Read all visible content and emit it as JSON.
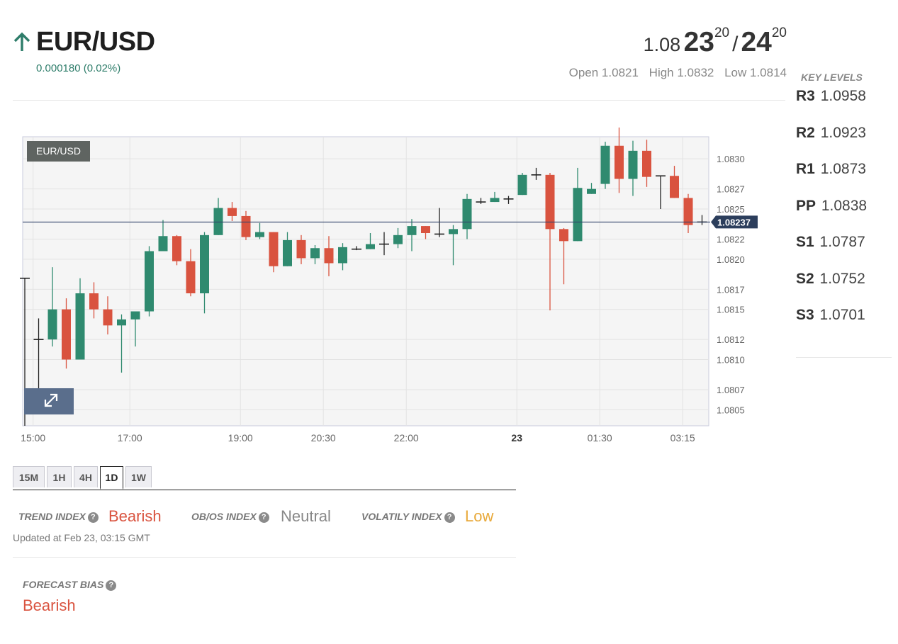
{
  "header": {
    "pair": "EUR/USD",
    "change": "0.000180 (0.02%)",
    "bid_prefix": "1.08",
    "bid_big": "23",
    "bid_sup": "20",
    "separator": "/",
    "ask_big": "24",
    "ask_sup": "20",
    "open": "Open 1.0821",
    "high": "High 1.0832",
    "low": "Low 1.0814",
    "direction_icon": "arrow-up-icon"
  },
  "key_levels": {
    "title": "KEY LEVELS",
    "levels": [
      {
        "name": "R3",
        "value": "1.0958"
      },
      {
        "name": "R2",
        "value": "1.0923"
      },
      {
        "name": "R1",
        "value": "1.0873"
      },
      {
        "name": "PP",
        "value": "1.0838"
      },
      {
        "name": "S1",
        "value": "1.0787"
      },
      {
        "name": "S2",
        "value": "1.0752"
      },
      {
        "name": "S3",
        "value": "1.0701"
      }
    ]
  },
  "chart_data": {
    "type": "candlestick",
    "pair_label": "EUR/USD",
    "current_price_label": "1.08237",
    "current_price": 1.08237,
    "ylim": [
      1.08034,
      1.08322
    ],
    "y_ticks": [
      {
        "value": 1.0805,
        "label": "1.0805"
      },
      {
        "value": 1.0807,
        "label": "1.0807"
      },
      {
        "value": 1.081,
        "label": "1.0810"
      },
      {
        "value": 1.0812,
        "label": "1.0812"
      },
      {
        "value": 1.0815,
        "label": "1.0815"
      },
      {
        "value": 1.0817,
        "label": "1.0817"
      },
      {
        "value": 1.082,
        "label": "1.0820"
      },
      {
        "value": 1.0822,
        "label": "1.0822"
      },
      {
        "value": 1.0825,
        "label": "1.0825"
      },
      {
        "value": 1.0827,
        "label": "1.0827"
      },
      {
        "value": 1.083,
        "label": "1.0830"
      }
    ],
    "x_ticks": [
      {
        "index": 0.6,
        "label": "15:00",
        "bold": false
      },
      {
        "index": 7.6,
        "label": "17:00",
        "bold": false
      },
      {
        "index": 15.6,
        "label": "19:00",
        "bold": false
      },
      {
        "index": 21.6,
        "label": "20:30",
        "bold": false
      },
      {
        "index": 27.6,
        "label": "22:00",
        "bold": false
      },
      {
        "index": 35.6,
        "label": "23",
        "bold": true
      },
      {
        "index": 41.6,
        "label": "01:30",
        "bold": false
      },
      {
        "index": 47.6,
        "label": "03:15",
        "bold": false
      }
    ],
    "candles": [
      {
        "o": 1.08181,
        "h": 1.08181,
        "l": 1.08034,
        "c": 1.08181
      },
      {
        "o": 1.0812,
        "h": 1.08141,
        "l": 1.0806,
        "c": 1.0812
      },
      {
        "o": 1.0812,
        "h": 1.08192,
        "l": 1.08113,
        "c": 1.0815
      },
      {
        "o": 1.0815,
        "h": 1.08161,
        "l": 1.08091,
        "c": 1.081
      },
      {
        "o": 1.081,
        "h": 1.08181,
        "l": 1.081,
        "c": 1.08166
      },
      {
        "o": 1.08166,
        "h": 1.08177,
        "l": 1.08141,
        "c": 1.0815
      },
      {
        "o": 1.0815,
        "h": 1.08163,
        "l": 1.08125,
        "c": 1.08134
      },
      {
        "o": 1.08134,
        "h": 1.08145,
        "l": 1.08087,
        "c": 1.0814
      },
      {
        "o": 1.0814,
        "h": 1.08147,
        "l": 1.08113,
        "c": 1.08148
      },
      {
        "o": 1.08148,
        "h": 1.08213,
        "l": 1.08143,
        "c": 1.08208
      },
      {
        "o": 1.08208,
        "h": 1.08239,
        "l": 1.08208,
        "c": 1.08223
      },
      {
        "o": 1.08223,
        "h": 1.08224,
        "l": 1.08194,
        "c": 1.08198
      },
      {
        "o": 1.08198,
        "h": 1.0821,
        "l": 1.08163,
        "c": 1.08166
      },
      {
        "o": 1.08166,
        "h": 1.08227,
        "l": 1.08146,
        "c": 1.08224
      },
      {
        "o": 1.08224,
        "h": 1.08261,
        "l": 1.08224,
        "c": 1.08251
      },
      {
        "o": 1.08251,
        "h": 1.08257,
        "l": 1.08238,
        "c": 1.08243
      },
      {
        "o": 1.08243,
        "h": 1.08248,
        "l": 1.08219,
        "c": 1.08222
      },
      {
        "o": 1.08222,
        "h": 1.08236,
        "l": 1.0822,
        "c": 1.08227
      },
      {
        "o": 1.08227,
        "h": 1.08227,
        "l": 1.08187,
        "c": 1.08193
      },
      {
        "o": 1.08193,
        "h": 1.08227,
        "l": 1.08193,
        "c": 1.08219
      },
      {
        "o": 1.08219,
        "h": 1.08224,
        "l": 1.08195,
        "c": 1.08201
      },
      {
        "o": 1.08201,
        "h": 1.08214,
        "l": 1.08195,
        "c": 1.08211
      },
      {
        "o": 1.08211,
        "h": 1.08223,
        "l": 1.08183,
        "c": 1.08196
      },
      {
        "o": 1.08196,
        "h": 1.08216,
        "l": 1.08189,
        "c": 1.08212
      },
      {
        "o": 1.08212,
        "h": 1.08213,
        "l": 1.08209,
        "c": 1.0821
      },
      {
        "o": 1.0821,
        "h": 1.08226,
        "l": 1.0821,
        "c": 1.08215
      },
      {
        "o": 1.08215,
        "h": 1.08227,
        "l": 1.08204,
        "c": 1.08215
      },
      {
        "o": 1.08215,
        "h": 1.08231,
        "l": 1.08211,
        "c": 1.08224
      },
      {
        "o": 1.08224,
        "h": 1.0824,
        "l": 1.08208,
        "c": 1.08233
      },
      {
        "o": 1.08233,
        "h": 1.08233,
        "l": 1.0822,
        "c": 1.08226
      },
      {
        "o": 1.08226,
        "h": 1.08251,
        "l": 1.08222,
        "c": 1.08225
      },
      {
        "o": 1.08225,
        "h": 1.08234,
        "l": 1.08194,
        "c": 1.0823
      },
      {
        "o": 1.0823,
        "h": 1.08265,
        "l": 1.0822,
        "c": 1.0826
      },
      {
        "o": 1.0826,
        "h": 1.08261,
        "l": 1.08255,
        "c": 1.08257
      },
      {
        "o": 1.08257,
        "h": 1.08267,
        "l": 1.08257,
        "c": 1.08261
      },
      {
        "o": 1.0826,
        "h": 1.08263,
        "l": 1.08255,
        "c": 1.0826
      },
      {
        "o": 1.08264,
        "h": 1.08286,
        "l": 1.08264,
        "c": 1.08284
      },
      {
        "o": 1.08284,
        "h": 1.08291,
        "l": 1.08279,
        "c": 1.08284
      },
      {
        "o": 1.08284,
        "h": 1.08286,
        "l": 1.08149,
        "c": 1.0823
      },
      {
        "o": 1.0823,
        "h": 1.08231,
        "l": 1.08175,
        "c": 1.08218
      },
      {
        "o": 1.08218,
        "h": 1.08291,
        "l": 1.08218,
        "c": 1.08271
      },
      {
        "o": 1.08265,
        "h": 1.08276,
        "l": 1.08265,
        "c": 1.0827
      },
      {
        "o": 1.08275,
        "h": 1.08317,
        "l": 1.0827,
        "c": 1.08313
      },
      {
        "o": 1.08313,
        "h": 1.08332,
        "l": 1.08266,
        "c": 1.0828
      },
      {
        "o": 1.0828,
        "h": 1.08318,
        "l": 1.08263,
        "c": 1.08308
      },
      {
        "o": 1.08308,
        "h": 1.08319,
        "l": 1.08272,
        "c": 1.08282
      },
      {
        "o": 1.08283,
        "h": 1.08283,
        "l": 1.0825,
        "c": 1.08283
      },
      {
        "o": 1.08283,
        "h": 1.08293,
        "l": 1.08261,
        "c": 1.08261
      },
      {
        "o": 1.08261,
        "h": 1.08265,
        "l": 1.08226,
        "c": 1.08234
      },
      {
        "o": 1.08234,
        "h": 1.08244,
        "l": 1.08234,
        "c": 1.08237
      }
    ]
  },
  "timeframes": {
    "tabs": [
      "15M",
      "1H",
      "4H",
      "1D",
      "1W"
    ],
    "active": "1D"
  },
  "indices": {
    "trend_label": "TREND INDEX",
    "trend_value": "Bearish",
    "obos_label": "OB/OS INDEX",
    "obos_value": "Neutral",
    "volatility_label": "VOLATILY INDEX",
    "volatility_value": "Low",
    "updated": "Updated at Feb 23, 03:15 GMT"
  },
  "forecast": {
    "label": "FORECAST BIAS",
    "value": "Bearish"
  },
  "colors": {
    "bull": "#2f8a6f",
    "bear": "#d9533f",
    "doji": "#222222",
    "price_line": "#34466b",
    "price_tag": "#2c3e5c",
    "grid": "#e3e3e3",
    "plot_bg": "#f5f5f5"
  }
}
